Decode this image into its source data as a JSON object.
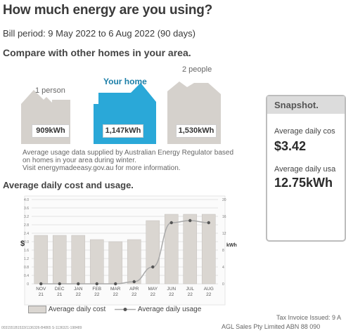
{
  "header": {
    "title": "How much energy are you using?",
    "bill_period": "Bill period: 9 May 2022 to 6 Aug 2022 (90 days)"
  },
  "compare": {
    "heading": "Compare with other homes in your area.",
    "homes": [
      {
        "label": "1 person",
        "usage": "909kWh"
      },
      {
        "label": "Your home",
        "usage": "1,147kWh"
      },
      {
        "label": "2 people",
        "usage": "1,530kWh"
      }
    ],
    "note_lines": [
      "Average usage data supplied by Australian Energy Regulator based",
      "on homes in your area during winter.",
      "Visit energymadeeasy.gov.au for more information."
    ]
  },
  "colors": {
    "your_home": "#2aa8d8",
    "other_home": "#d5d1cc",
    "bar_fill": "#dad6d1",
    "line": "#a9a9a9"
  },
  "snapshot": {
    "title": "Snapshot.",
    "items": [
      {
        "label": "Average daily cos",
        "value": "$3.42"
      },
      {
        "label": "Average daily usa",
        "value": "12.75kWh"
      }
    ]
  },
  "chart_data": {
    "type": "bar",
    "title": "Average daily cost and usage.",
    "xlabel": "",
    "ylabel": "$",
    "y2label": "kWh",
    "categories": [
      "NOV\n21",
      "DEC\n21",
      "JAN\n22",
      "FEB\n22",
      "MAR\n22",
      "APR\n22",
      "MAY\n22",
      "JUN\n22",
      "JUL\n22",
      "AUG\n22"
    ],
    "ylim": [
      0,
      4.0
    ],
    "y_ticks": [
      "0",
      "0.4",
      "0.8",
      "1.2",
      "1.6",
      "2.0",
      "2.4",
      "2.8",
      "3.2",
      "3.6",
      "4.0"
    ],
    "y2lim": [
      0,
      20
    ],
    "y2_ticks": [
      "0",
      "4",
      "8",
      "12",
      "16",
      "20"
    ],
    "grid": true,
    "legend_position": "bottom",
    "series": [
      {
        "name": "Average daily cost",
        "type": "bar",
        "axis": "left",
        "values": [
          2.3,
          2.3,
          2.3,
          2.1,
          2.0,
          2.1,
          3.0,
          3.3,
          3.3,
          3.3
        ]
      },
      {
        "name": "Average daily usage",
        "type": "line",
        "axis": "right",
        "values": [
          0,
          0,
          0,
          0,
          0,
          0.5,
          4.0,
          14.5,
          15.0,
          14.5
        ]
      }
    ]
  },
  "footer": {
    "line1": "Tax Invoice Issued: 9 A",
    "line2": "AGL Sales Pty Limited ABN 88 090",
    "tiny": "0031551B1533/1136326-B4865 S-1136321-198489"
  }
}
